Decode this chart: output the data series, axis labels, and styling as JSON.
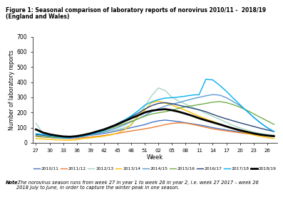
{
  "title_line1": "Figure 1: Seasonal comparison of laboratory reports of norovirus 2010/11 -  2018/19",
  "title_line2": "(England and Wales)",
  "xlabel": "Week",
  "ylabel": "Number of laboratory reports",
  "note_bold": "Note.",
  "note_rest": " The norovirus season runs from week 27 in year 1 to week 26 in year 2, i.e. week 27 2017 – week 26\n2018 July to June, in order to capture the winter peak in one season.",
  "x_ticks": [
    "27",
    "30",
    "33",
    "36",
    "39",
    "42",
    "45",
    "48",
    "51",
    "02",
    "05",
    "08",
    "11",
    "14",
    "17",
    "20",
    "23",
    "26"
  ],
  "ylim": [
    0,
    700
  ],
  "yticks": [
    0,
    100,
    200,
    300,
    400,
    500,
    600,
    700
  ],
  "seasons": {
    "2010/11": {
      "color": "#4472c4",
      "linewidth": 1.0
    },
    "2011/12": {
      "color": "#ed7d31",
      "linewidth": 1.0
    },
    "2012/13": {
      "color": "#a5d5c5",
      "linewidth": 1.0
    },
    "2013/14": {
      "color": "#ffc000",
      "linewidth": 1.0
    },
    "2014/15": {
      "color": "#5b9bd5",
      "linewidth": 1.0
    },
    "2015/16": {
      "color": "#70ad47",
      "linewidth": 1.0
    },
    "2016/17": {
      "color": "#264478",
      "linewidth": 1.0
    },
    "2017/18": {
      "color": "#00b0f0",
      "linewidth": 1.0
    },
    "2018/19": {
      "color": "#000000",
      "linewidth": 2.0
    }
  },
  "season_data": {
    "2010/11": [
      90,
      65,
      50,
      42,
      38,
      36,
      38,
      45,
      50,
      55,
      62,
      70,
      80,
      90,
      100,
      110,
      120,
      135,
      145,
      150,
      145,
      140,
      132,
      125,
      118,
      110,
      100,
      92,
      85,
      78,
      72,
      66,
      60,
      55,
      50,
      45
    ],
    "2011/12": [
      42,
      38,
      35,
      32,
      30,
      28,
      30,
      35,
      38,
      42,
      48,
      55,
      62,
      70,
      78,
      85,
      92,
      100,
      110,
      120,
      128,
      132,
      130,
      122,
      112,
      102,
      92,
      85,
      78,
      72,
      66,
      60,
      55,
      50,
      45,
      40
    ],
    "2012/13": [
      128,
      65,
      52,
      44,
      38,
      32,
      36,
      42,
      52,
      60,
      68,
      76,
      88,
      100,
      115,
      175,
      240,
      310,
      362,
      345,
      300,
      275,
      255,
      235,
      215,
      195,
      175,
      155,
      135,
      115,
      98,
      84,
      72,
      62,
      55,
      50
    ],
    "2013/14": [
      28,
      25,
      22,
      20,
      18,
      17,
      20,
      28,
      32,
      38,
      44,
      52,
      65,
      85,
      120,
      175,
      215,
      265,
      275,
      262,
      248,
      232,
      215,
      195,
      175,
      158,
      142,
      125,
      108,
      92,
      78,
      65,
      52,
      42,
      35,
      28
    ],
    "2014/15": [
      48,
      40,
      36,
      32,
      30,
      30,
      35,
      42,
      52,
      62,
      72,
      85,
      100,
      118,
      138,
      158,
      180,
      205,
      225,
      242,
      255,
      265,
      278,
      290,
      300,
      310,
      318,
      315,
      298,
      272,
      245,
      210,
      170,
      132,
      100,
      72
    ],
    "2015/16": [
      45,
      40,
      38,
      36,
      34,
      36,
      40,
      48,
      58,
      68,
      80,
      95,
      110,
      125,
      142,
      158,
      175,
      190,
      198,
      205,
      215,
      228,
      238,
      245,
      252,
      260,
      268,
      272,
      265,
      252,
      235,
      215,
      192,
      168,
      145,
      122
    ],
    "2016/17": [
      55,
      50,
      45,
      42,
      40,
      40,
      44,
      50,
      58,
      70,
      85,
      105,
      128,
      150,
      172,
      195,
      222,
      245,
      260,
      265,
      258,
      248,
      238,
      228,
      218,
      205,
      188,
      172,
      158,
      145,
      132,
      120,
      108,
      96,
      85,
      75
    ],
    "2017/18": [
      60,
      55,
      48,
      42,
      36,
      34,
      38,
      45,
      55,
      68,
      82,
      100,
      122,
      148,
      178,
      210,
      248,
      270,
      285,
      295,
      298,
      302,
      308,
      315,
      318,
      420,
      415,
      380,
      340,
      295,
      252,
      210,
      168,
      132,
      100,
      75
    ],
    "2018/19": [
      88,
      68,
      56,
      48,
      42,
      40,
      44,
      52,
      62,
      75,
      88,
      105,
      122,
      142,
      162,
      180,
      200,
      212,
      218,
      222,
      215,
      205,
      192,
      178,
      162,
      148,
      135,
      122,
      108,
      95,
      83,
      72,
      62,
      54,
      48,
      44
    ]
  }
}
